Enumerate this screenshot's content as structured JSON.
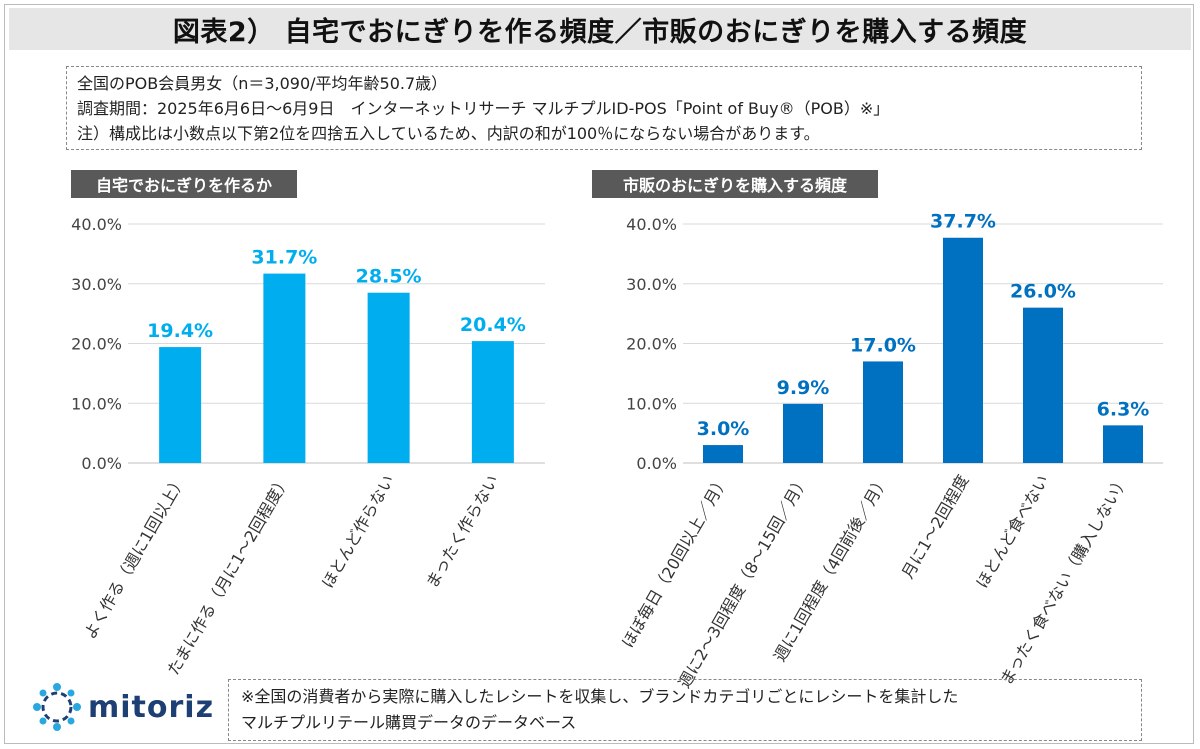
{
  "title": "図表2） 自宅でおにぎりを作る頻度／市販のおにぎりを購入する頻度",
  "notes": [
    "全国のPOB会員男女（n＝3,090/平均年齢50.7歳）",
    "調査期間：2025年6月6日～6月9日　インターネットリサーチ マルチプルID-POS「Point of Buy®（POB）※」",
    "注）構成比は小数点以下第2位を四捨五入しているため、内訳の和が100％にならない場合があります。"
  ],
  "footer": {
    "lines": [
      "※全国の消費者から実際に購入したレシートを収集し、ブランドカテゴリごとにレシートを集計した",
      "マルチプルリテール購買データのデータベース"
    ],
    "logo_text": "mitoriz",
    "logo_icon": "network-star-icon",
    "logo_color": "#1e3f73"
  },
  "chart_data": [
    {
      "type": "bar",
      "title": "自宅でおにぎりを作るか",
      "categories": [
        "よく作る（週に1回以上）",
        "たまに作る（月に1～2回程度）",
        "ほとんど作らない",
        "まったく作らない"
      ],
      "values": [
        19.4,
        31.7,
        28.5,
        20.4
      ],
      "data_labels": [
        "19.4%",
        "31.7%",
        "28.5%",
        "20.4%"
      ],
      "yticks": [
        "0.0%",
        "10.0%",
        "20.0%",
        "30.0%",
        "40.0%"
      ],
      "ylim": [
        0,
        40
      ],
      "grid": true,
      "color": "#00aeef"
    },
    {
      "type": "bar",
      "title": "市販のおにぎりを購入する頻度",
      "categories": [
        "ほぼ毎日（20回以上／月）",
        "週に2～3回程度（8～15回／月）",
        "週に1回程度（4回前後／月）",
        "月に1～2回程度",
        "ほとんど食べない",
        "まったく食べない（購入しない）"
      ],
      "values": [
        3.0,
        9.9,
        17.0,
        37.7,
        26.0,
        6.3
      ],
      "data_labels": [
        "3.0%",
        "9.9%",
        "17.0%",
        "37.7%",
        "26.0%",
        "6.3%"
      ],
      "yticks": [
        "0.0%",
        "10.0%",
        "20.0%",
        "30.0%",
        "40.0%"
      ],
      "ylim": [
        0,
        40
      ],
      "grid": true,
      "color": "#0070c0"
    }
  ]
}
